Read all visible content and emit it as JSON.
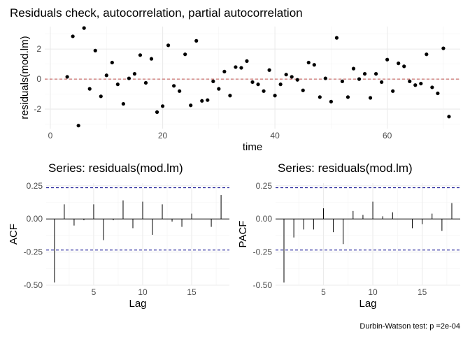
{
  "title": "Residuals check, autocorrelation, partial autocorrelation",
  "caption": "Durbin-Watson test: p =2e-04",
  "chart_data": [
    {
      "type": "scatter",
      "xlabel": "time",
      "ylabel": "residuals(mod.lm)",
      "xlim": [
        -1,
        73
      ],
      "ylim": [
        -3.3,
        3.5
      ],
      "x_ticks": [
        0,
        20,
        40,
        60
      ],
      "x_tick_labels": [
        "0",
        "20",
        "40",
        "60"
      ],
      "y_ticks": [
        -2,
        0,
        2
      ],
      "y_tick_labels": [
        "-2",
        "0",
        "2"
      ],
      "reference_line": {
        "y": 0,
        "color": "#c0504d",
        "style": "dashed"
      },
      "point_color": "#000000",
      "grid": true,
      "x": [
        3,
        4,
        5,
        6,
        7,
        8,
        9,
        10,
        11,
        12,
        13,
        14,
        15,
        16,
        17,
        18,
        19,
        20,
        21,
        22,
        23,
        24,
        25,
        26,
        27,
        28,
        29,
        30,
        31,
        32,
        33,
        34,
        35,
        36,
        37,
        38,
        39,
        40,
        41,
        42,
        43,
        44,
        45,
        46,
        47,
        48,
        49,
        50,
        51,
        52,
        53,
        54,
        55,
        56,
        57,
        58,
        59,
        60,
        61,
        62,
        63,
        64,
        65,
        66,
        67,
        68,
        69,
        70,
        71
      ],
      "y": [
        0.15,
        2.85,
        -3.1,
        3.4,
        -0.65,
        1.9,
        -1.15,
        0.25,
        1.1,
        -0.35,
        -1.65,
        0.05,
        0.35,
        1.6,
        -0.25,
        1.35,
        -2.2,
        -1.8,
        2.25,
        -0.45,
        -0.8,
        1.65,
        -1.75,
        2.55,
        -1.45,
        -1.4,
        -0.15,
        -0.65,
        0.5,
        -1.1,
        0.8,
        0.75,
        1.2,
        -0.2,
        -0.35,
        -0.8,
        0.6,
        -1.1,
        -0.35,
        0.3,
        0.15,
        -0.05,
        -0.75,
        1.1,
        0.95,
        -1.2,
        0.05,
        -1.5,
        2.75,
        -0.15,
        -1.2,
        0.7,
        0.0,
        0.35,
        -1.25,
        0.35,
        -0.2,
        1.3,
        -0.8,
        1.05,
        0.85,
        -0.15,
        -0.4,
        -0.3,
        1.65,
        -0.55,
        -0.95,
        2.05,
        -2.5
      ]
    },
    {
      "type": "bar",
      "title": "Series: residuals(mod.lm)",
      "xlabel": "Lag",
      "ylabel": "ACF",
      "xlim": [
        0.15,
        18.85
      ],
      "ylim": [
        -0.5,
        0.27
      ],
      "x_ticks": [
        5,
        10,
        15
      ],
      "x_tick_labels": [
        "5",
        "10",
        "15"
      ],
      "y_ticks": [
        -0.5,
        -0.25,
        0,
        0.25
      ],
      "y_tick_labels": [
        "-0.50",
        "-0.25",
        "0.00",
        "0.25"
      ],
      "confidence_limits": [
        0.235,
        -0.235
      ],
      "limit_color": "#00008b",
      "grid": true,
      "categories": [
        1,
        2,
        3,
        4,
        5,
        6,
        7,
        8,
        9,
        10,
        11,
        12,
        13,
        14,
        15,
        16,
        17,
        18
      ],
      "values": [
        -0.48,
        0.11,
        -0.05,
        -0.01,
        0.11,
        -0.16,
        -0.01,
        0.14,
        -0.07,
        0.13,
        -0.12,
        0.11,
        -0.02,
        -0.06,
        0.04,
        0.0,
        -0.06,
        0.18
      ]
    },
    {
      "type": "bar",
      "title": "Series: residuals(mod.lm)",
      "xlabel": "Lag",
      "ylabel": "PACF",
      "xlim": [
        0.15,
        18.85
      ],
      "ylim": [
        -0.5,
        0.27
      ],
      "x_ticks": [
        5,
        10,
        15
      ],
      "x_tick_labels": [
        "5",
        "10",
        "15"
      ],
      "y_ticks": [
        -0.5,
        -0.25,
        0,
        0.25
      ],
      "y_tick_labels": [
        "-0.50",
        "-0.25",
        "0.00",
        "0.25"
      ],
      "confidence_limits": [
        0.235,
        -0.235
      ],
      "limit_color": "#00008b",
      "grid": true,
      "categories": [
        1,
        2,
        3,
        4,
        5,
        6,
        7,
        8,
        9,
        10,
        11,
        12,
        13,
        14,
        15,
        16,
        17,
        18
      ],
      "values": [
        -0.48,
        -0.14,
        -0.08,
        -0.08,
        0.08,
        -0.1,
        -0.19,
        0.06,
        0.03,
        0.13,
        0.02,
        0.05,
        0.0,
        -0.07,
        -0.04,
        0.04,
        -0.09,
        0.12
      ]
    }
  ]
}
